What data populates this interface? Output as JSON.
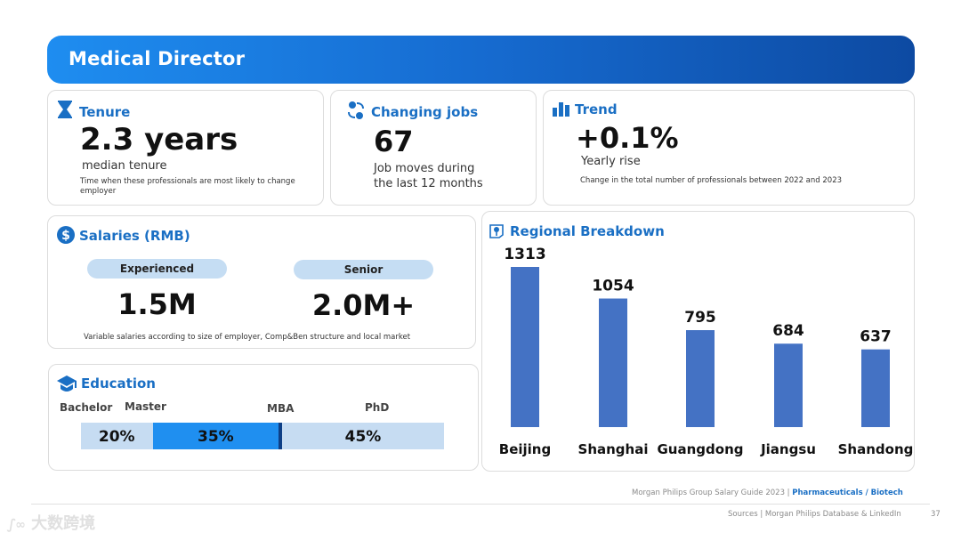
{
  "header": {
    "title": "Medical Director"
  },
  "tenure": {
    "title": "Tenure",
    "value": "2.3 years",
    "sub": "median tenure",
    "note": "Time when these professionals are most likely to  change employer"
  },
  "changing_jobs": {
    "title": "Changing jobs",
    "value": "67",
    "sub_line1": "Job moves during",
    "sub_line2": "the last 12 months"
  },
  "trend": {
    "title": "Trend",
    "value": "+0.1%",
    "sub": "Yearly rise",
    "note": "Change in the total number of professionals between 2022 and 2023"
  },
  "salaries": {
    "title": "Salaries (RMB)",
    "experienced_label": "Experienced",
    "experienced_value": "1.5M",
    "senior_label": "Senior",
    "senior_value": "2.0M+",
    "note": "Variable salaries according to size of employer, Comp&Ben structure and local market"
  },
  "education": {
    "title": "Education",
    "segments": [
      {
        "label": "Bachelor",
        "value": "20%",
        "pct": 20,
        "color": "#c6dcf2"
      },
      {
        "label": "Master",
        "value": "35%",
        "pct": 35,
        "color": "#1f8ff0"
      },
      {
        "label": "MBA",
        "value": "1%",
        "pct": 1,
        "color": "#0e3f86"
      },
      {
        "label": "PhD",
        "value": "45%",
        "pct": 45,
        "color": "#c6dcf2"
      }
    ]
  },
  "chart_data": {
    "type": "bar",
    "title": "Regional Breakdown",
    "categories": [
      "Beijing",
      "Shanghai",
      "Guangdong",
      "Jiangsu",
      "Shandong"
    ],
    "values": [
      1313,
      1054,
      795,
      684,
      637
    ],
    "bar_color": "#4472c4"
  },
  "footer": {
    "source_guide": "Morgan Philips Group Salary Guide 2023 | ",
    "source_guide_bold": "Pharmaceuticals / Biotech",
    "sources": "Sources | Morgan Philips Database & LinkedIn",
    "page_number": "37"
  },
  "watermark": {
    "text": "大数跨境"
  }
}
